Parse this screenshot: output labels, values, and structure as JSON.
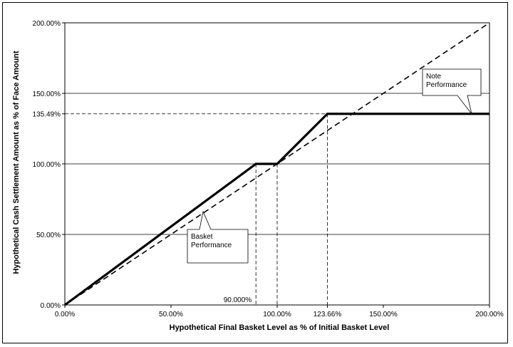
{
  "chart_data": {
    "type": "line",
    "xlabel": "Hypothetical Final Basket Level as % of Initial Basket Level",
    "ylabel": "Hypothetical Cash Settlement Amount as % of Face Amount",
    "xlim": [
      0,
      200
    ],
    "ylim": [
      0,
      200
    ],
    "x_ticks": [
      "0.00%",
      "50.00%",
      "100.00%",
      "123.66%",
      "150.00%",
      "200.00%"
    ],
    "y_ticks": [
      "0.00%",
      "50.00%",
      "100.00%",
      "135.49%",
      "150.00%",
      "200.00%"
    ],
    "extra_x_label": "90.000%",
    "grid": "horizontal at 50, 100, 150, 200",
    "series": [
      {
        "name": "Note Performance",
        "style": "solid-thick",
        "x": [
          0,
          90,
          100,
          123.66,
          200
        ],
        "y": [
          0,
          100,
          100,
          135.49,
          135.49
        ]
      },
      {
        "name": "Basket Performance",
        "style": "dashed",
        "x": [
          0,
          200
        ],
        "y": [
          0,
          200
        ]
      }
    ],
    "reference_lines": {
      "vertical": [
        90,
        100,
        123.66
      ],
      "horizontal": [
        135.49
      ]
    },
    "callouts": [
      {
        "lines": [
          "Note",
          "Performance"
        ],
        "series": 0
      },
      {
        "lines": [
          "Basket",
          "Performance"
        ],
        "series": 1
      }
    ]
  }
}
